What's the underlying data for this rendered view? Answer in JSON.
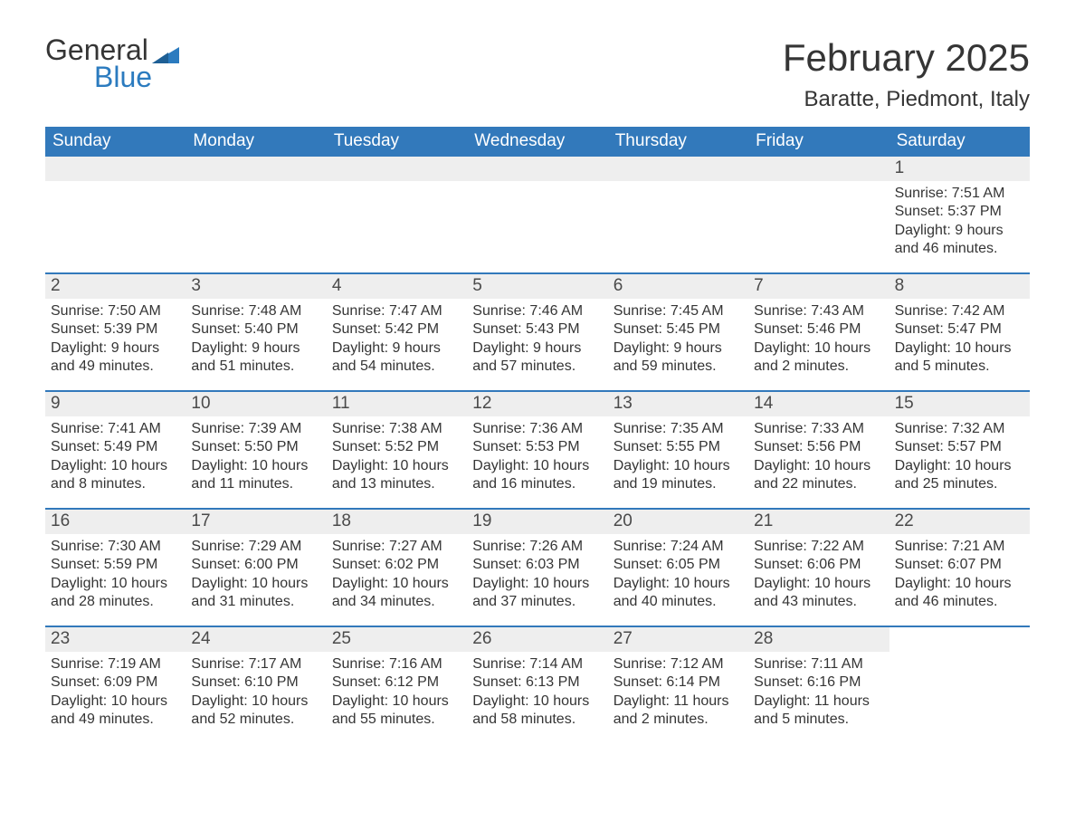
{
  "logo": {
    "general": "General",
    "blue": "Blue",
    "tri_color": "#2b7bbf"
  },
  "title": "February 2025",
  "location": "Baratte, Piedmont, Italy",
  "colors": {
    "header_bg": "#3279bb",
    "header_text": "#ffffff",
    "row_divider": "#3279bb",
    "daynum_bg": "#eeeeee",
    "text": "#353535",
    "background": "#ffffff"
  },
  "typography": {
    "title_fontsize": 42,
    "location_fontsize": 24,
    "dow_fontsize": 19,
    "daynum_fontsize": 19,
    "body_fontsize": 16,
    "logo_fontsize": 32
  },
  "layout": {
    "columns": 7,
    "weeks": 5
  },
  "days_of_week": [
    "Sunday",
    "Monday",
    "Tuesday",
    "Wednesday",
    "Thursday",
    "Friday",
    "Saturday"
  ],
  "labels": {
    "sunrise": "Sunrise: ",
    "sunset": "Sunset: ",
    "daylight": "Daylight: "
  },
  "weeks": [
    [
      {
        "blank": true
      },
      {
        "blank": true
      },
      {
        "blank": true
      },
      {
        "blank": true
      },
      {
        "blank": true
      },
      {
        "blank": true
      },
      {
        "n": 1,
        "sunrise": "7:51 AM",
        "sunset": "5:37 PM",
        "daylight": "9 hours and 46 minutes."
      }
    ],
    [
      {
        "n": 2,
        "sunrise": "7:50 AM",
        "sunset": "5:39 PM",
        "daylight": "9 hours and 49 minutes."
      },
      {
        "n": 3,
        "sunrise": "7:48 AM",
        "sunset": "5:40 PM",
        "daylight": "9 hours and 51 minutes."
      },
      {
        "n": 4,
        "sunrise": "7:47 AM",
        "sunset": "5:42 PM",
        "daylight": "9 hours and 54 minutes."
      },
      {
        "n": 5,
        "sunrise": "7:46 AM",
        "sunset": "5:43 PM",
        "daylight": "9 hours and 57 minutes."
      },
      {
        "n": 6,
        "sunrise": "7:45 AM",
        "sunset": "5:45 PM",
        "daylight": "9 hours and 59 minutes."
      },
      {
        "n": 7,
        "sunrise": "7:43 AM",
        "sunset": "5:46 PM",
        "daylight": "10 hours and 2 minutes."
      },
      {
        "n": 8,
        "sunrise": "7:42 AM",
        "sunset": "5:47 PM",
        "daylight": "10 hours and 5 minutes."
      }
    ],
    [
      {
        "n": 9,
        "sunrise": "7:41 AM",
        "sunset": "5:49 PM",
        "daylight": "10 hours and 8 minutes."
      },
      {
        "n": 10,
        "sunrise": "7:39 AM",
        "sunset": "5:50 PM",
        "daylight": "10 hours and 11 minutes."
      },
      {
        "n": 11,
        "sunrise": "7:38 AM",
        "sunset": "5:52 PM",
        "daylight": "10 hours and 13 minutes."
      },
      {
        "n": 12,
        "sunrise": "7:36 AM",
        "sunset": "5:53 PM",
        "daylight": "10 hours and 16 minutes."
      },
      {
        "n": 13,
        "sunrise": "7:35 AM",
        "sunset": "5:55 PM",
        "daylight": "10 hours and 19 minutes."
      },
      {
        "n": 14,
        "sunrise": "7:33 AM",
        "sunset": "5:56 PM",
        "daylight": "10 hours and 22 minutes."
      },
      {
        "n": 15,
        "sunrise": "7:32 AM",
        "sunset": "5:57 PM",
        "daylight": "10 hours and 25 minutes."
      }
    ],
    [
      {
        "n": 16,
        "sunrise": "7:30 AM",
        "sunset": "5:59 PM",
        "daylight": "10 hours and 28 minutes."
      },
      {
        "n": 17,
        "sunrise": "7:29 AM",
        "sunset": "6:00 PM",
        "daylight": "10 hours and 31 minutes."
      },
      {
        "n": 18,
        "sunrise": "7:27 AM",
        "sunset": "6:02 PM",
        "daylight": "10 hours and 34 minutes."
      },
      {
        "n": 19,
        "sunrise": "7:26 AM",
        "sunset": "6:03 PM",
        "daylight": "10 hours and 37 minutes."
      },
      {
        "n": 20,
        "sunrise": "7:24 AM",
        "sunset": "6:05 PM",
        "daylight": "10 hours and 40 minutes."
      },
      {
        "n": 21,
        "sunrise": "7:22 AM",
        "sunset": "6:06 PM",
        "daylight": "10 hours and 43 minutes."
      },
      {
        "n": 22,
        "sunrise": "7:21 AM",
        "sunset": "6:07 PM",
        "daylight": "10 hours and 46 minutes."
      }
    ],
    [
      {
        "n": 23,
        "sunrise": "7:19 AM",
        "sunset": "6:09 PM",
        "daylight": "10 hours and 49 minutes."
      },
      {
        "n": 24,
        "sunrise": "7:17 AM",
        "sunset": "6:10 PM",
        "daylight": "10 hours and 52 minutes."
      },
      {
        "n": 25,
        "sunrise": "7:16 AM",
        "sunset": "6:12 PM",
        "daylight": "10 hours and 55 minutes."
      },
      {
        "n": 26,
        "sunrise": "7:14 AM",
        "sunset": "6:13 PM",
        "daylight": "10 hours and 58 minutes."
      },
      {
        "n": 27,
        "sunrise": "7:12 AM",
        "sunset": "6:14 PM",
        "daylight": "11 hours and 2 minutes."
      },
      {
        "n": 28,
        "sunrise": "7:11 AM",
        "sunset": "6:16 PM",
        "daylight": "11 hours and 5 minutes."
      },
      {
        "blank": true,
        "no_bg": true
      }
    ]
  ]
}
